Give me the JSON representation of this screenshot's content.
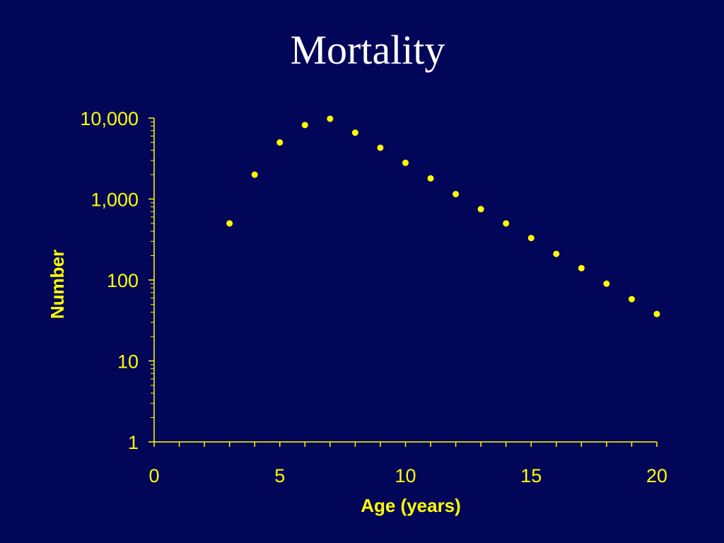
{
  "slide": {
    "title": "Mortality",
    "background": "#020659"
  },
  "chart_data": {
    "type": "scatter",
    "title": "Mortality",
    "xlabel": "Age (years)",
    "ylabel": "Number",
    "xlim": [
      0,
      20
    ],
    "ylim": [
      1,
      10000
    ],
    "yscale": "log",
    "grid": false,
    "legend": "none",
    "x_ticks": [
      "0",
      "5",
      "10",
      "15",
      "20"
    ],
    "y_ticks": [
      "1",
      "10",
      "100",
      "1,000",
      "10,000"
    ],
    "marker_color": "#ffff00",
    "axis_color": "#ffff00",
    "series": [
      {
        "x": [
          3,
          4,
          5,
          6,
          7,
          8,
          9,
          10,
          11,
          12,
          13,
          14,
          15,
          16,
          17,
          18,
          19,
          20
        ],
        "y": [
          500,
          2000,
          5000,
          8200,
          9800,
          6600,
          4300,
          2800,
          1800,
          1150,
          750,
          500,
          330,
          210,
          140,
          90,
          58,
          38
        ]
      }
    ]
  }
}
